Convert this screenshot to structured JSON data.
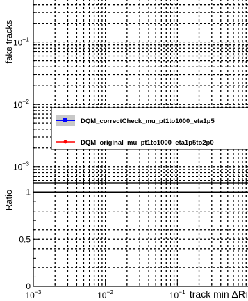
{
  "chart_data": [
    {
      "type": "line",
      "ylabel": "fake tracks",
      "xscale": "log",
      "yscale": "log",
      "xlim": [
        0.001,
        1
      ],
      "ylim": [
        0.00055,
        0.5
      ],
      "grid": true,
      "legend_position": "middle-right",
      "x_ticks": [
        {
          "value": 0.001,
          "base": "10",
          "exp": "−3"
        },
        {
          "value": 0.01,
          "base": "10",
          "exp": "−2"
        },
        {
          "value": 0.1,
          "base": "10",
          "exp": "−1"
        },
        {
          "value": 1,
          "base": "1",
          "exp": ""
        }
      ],
      "y_ticks": [
        {
          "value": 0.001,
          "base": "10",
          "exp": "−3"
        },
        {
          "value": 0.01,
          "base": "10",
          "exp": "−2"
        },
        {
          "value": 0.1,
          "base": "10",
          "exp": "−1"
        }
      ],
      "series": [
        {
          "name": "DQM_correctCheck_mu_pt1to1000_eta1p5",
          "color": "#0000ff",
          "marker": "square",
          "x": [],
          "y": []
        },
        {
          "name": "DQM_original_mu_pt1to1000_eta1p5to2p0",
          "color": "#ff0000",
          "marker": "circle",
          "x": [],
          "y": []
        }
      ]
    },
    {
      "type": "line",
      "xlabel": "track min ΔR",
      "ylabel": "Ratio",
      "xscale": "log",
      "xlim": [
        0.001,
        1
      ],
      "ylim": [
        0,
        1.1
      ],
      "grid": true,
      "reference_line": 1,
      "y_ticks": [
        {
          "value": 0,
          "label": "0"
        },
        {
          "value": 0.5,
          "label": "0.5"
        },
        {
          "value": 1,
          "label": "1"
        }
      ],
      "series": []
    }
  ]
}
